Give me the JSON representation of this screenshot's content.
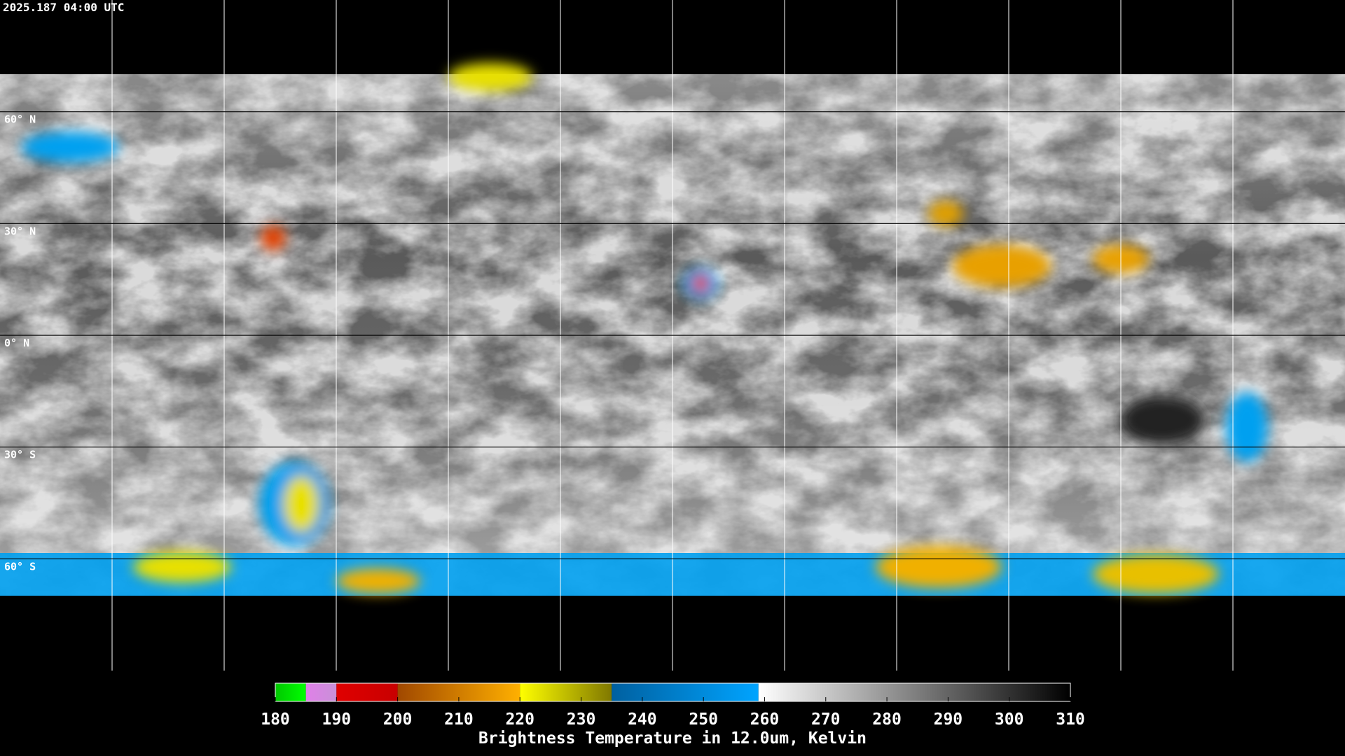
{
  "map": {
    "timestamp": "2025.187 04:00 UTC",
    "latlim": [
      -90,
      90
    ],
    "lonlim": [
      -180,
      180
    ],
    "lat_lines": [
      {
        "value": 60,
        "label": "60° N"
      },
      {
        "value": 30,
        "label": "30° N"
      },
      {
        "value": 0,
        "label": "0° N"
      },
      {
        "value": -30,
        "label": "30° S"
      },
      {
        "value": -60,
        "label": "60° S"
      }
    ],
    "lon_lines": [
      -150,
      -120,
      -90,
      -60,
      -30,
      0,
      30,
      60,
      90,
      120,
      150
    ]
  },
  "colorbar": {
    "range": [
      180,
      310
    ],
    "ticks": [
      180,
      190,
      200,
      210,
      220,
      230,
      240,
      250,
      260,
      270,
      280,
      290,
      300,
      310
    ],
    "label": "Brightness Temperature in 12.0um, Kelvin",
    "segments": [
      {
        "from": 180,
        "to": 185,
        "colors": [
          "#00c800",
          "#00ff00"
        ]
      },
      {
        "from": 185,
        "to": 190,
        "colors": [
          "#e080e8",
          "#c890d8"
        ]
      },
      {
        "from": 190,
        "to": 200,
        "colors": [
          "#e00000",
          "#c80000"
        ]
      },
      {
        "from": 200,
        "to": 220,
        "colors": [
          "#a04800",
          "#ffb000"
        ]
      },
      {
        "from": 220,
        "to": 235,
        "colors": [
          "#ffff00",
          "#807800"
        ]
      },
      {
        "from": 235,
        "to": 259,
        "colors": [
          "#0060a0",
          "#00a4ff"
        ]
      },
      {
        "from": 259,
        "to": 310,
        "colors": [
          "#ffffff",
          "#000000"
        ]
      }
    ]
  }
}
